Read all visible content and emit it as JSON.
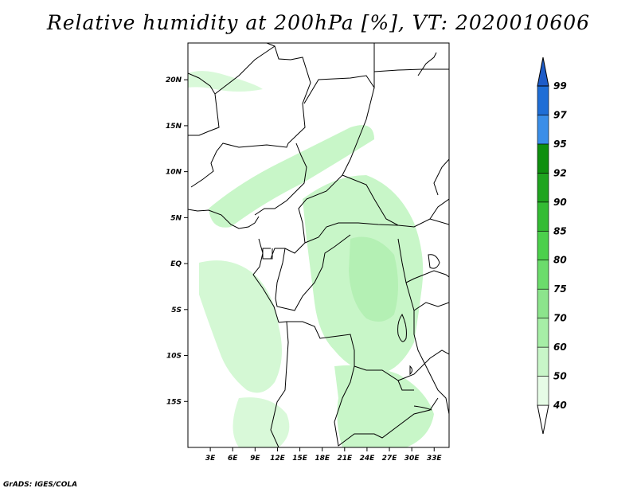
{
  "title": "Relative humidity at 200hPa [%], VT: 2020010606",
  "credit": "GrADS: IGES/COLA",
  "map": {
    "lon_range": [
      0,
      35
    ],
    "lat_range": [
      -20,
      24
    ],
    "x_ticks": [
      {
        "value": 3,
        "label": "3E"
      },
      {
        "value": 6,
        "label": "6E"
      },
      {
        "value": 9,
        "label": "9E"
      },
      {
        "value": 12,
        "label": "12E"
      },
      {
        "value": 15,
        "label": "15E"
      },
      {
        "value": 18,
        "label": "18E"
      },
      {
        "value": 21,
        "label": "21E"
      },
      {
        "value": 24,
        "label": "24E"
      },
      {
        "value": 27,
        "label": "27E"
      },
      {
        "value": 30,
        "label": "30E"
      },
      {
        "value": 33,
        "label": "33E"
      }
    ],
    "y_ticks": [
      {
        "value": 20,
        "label": "20N"
      },
      {
        "value": 15,
        "label": "15N"
      },
      {
        "value": 10,
        "label": "10N"
      },
      {
        "value": 5,
        "label": "5N"
      },
      {
        "value": 0,
        "label": "EQ"
      },
      {
        "value": -5,
        "label": "5S"
      },
      {
        "value": -10,
        "label": "10S"
      },
      {
        "value": -15,
        "label": "15S"
      }
    ]
  },
  "colorbar": {
    "labels": [
      "40",
      "50",
      "60",
      "70",
      "75",
      "80",
      "85",
      "90",
      "92",
      "95",
      "97",
      "99"
    ],
    "colors": [
      "#ffffff",
      "#e6fce6",
      "#c8f6c8",
      "#a6eea6",
      "#8ce48c",
      "#6cdc6c",
      "#4cd04c",
      "#34bc34",
      "#1fa41f",
      "#0f8f0f",
      "#3a8ee8",
      "#1f6ed6",
      "#1e5cc8"
    ]
  }
}
